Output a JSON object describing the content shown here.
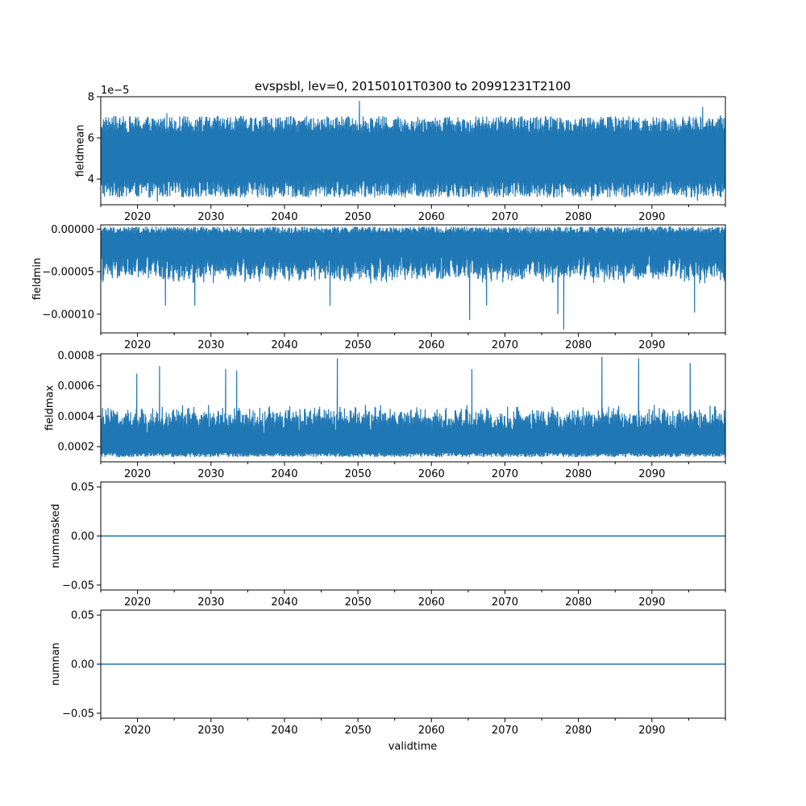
{
  "chart_data": {
    "type": "line",
    "title": "evspsbl, lev=0, 20150101T0300 to 20991231T2100",
    "xlabel": "validtime",
    "xlim": [
      2015.0,
      2100.0
    ],
    "x_ticks": [
      2020,
      2030,
      2040,
      2050,
      2060,
      2070,
      2080,
      2090
    ],
    "x_tick_labels": [
      "2020",
      "2030",
      "2040",
      "2050",
      "2060",
      "2070",
      "2080",
      "2090"
    ],
    "x_minor_ticks": [
      2015,
      2025,
      2035,
      2045,
      2055,
      2065,
      2075,
      2085,
      2095,
      2100
    ],
    "line_color": "#1f77b4",
    "grid": false,
    "legend": "none",
    "panels": [
      {
        "ylabel": "fieldmean",
        "offset_label": "1e−5",
        "ylim": [
          2.75,
          8.0
        ],
        "y_ticks": [
          4,
          6,
          8
        ],
        "y_tick_labels": [
          "4",
          "6",
          "8"
        ],
        "series_summary": {
          "mean": 5.0,
          "typical_low": 3.5,
          "typical_high": 6.5,
          "min": 2.9,
          "max": 7.8
        },
        "spikes": [
          {
            "x": 2022.7,
            "y": 2.9
          },
          {
            "x": 2024.0,
            "y": 7.2
          },
          {
            "x": 2050.2,
            "y": 7.8
          },
          {
            "x": 2081.8,
            "y": 2.95
          },
          {
            "x": 2096.2,
            "y": 2.95
          },
          {
            "x": 2096.9,
            "y": 7.5
          },
          {
            "x": 2099.3,
            "y": 7.1
          }
        ]
      },
      {
        "ylabel": "fieldmin",
        "ylim": [
          -0.000122,
          5e-06
        ],
        "y_ticks": [
          0.0,
          -5e-05,
          -0.0001
        ],
        "y_tick_labels": [
          "0.00000",
          "−0.00005",
          "−0.00010"
        ],
        "series_summary": {
          "upper_envelope": -5e-06,
          "typical_low": -5e-05,
          "min": -0.000118
        },
        "spikes": [
          {
            "x": 2023.8,
            "y": -9e-05
          },
          {
            "x": 2027.8,
            "y": -9e-05
          },
          {
            "x": 2046.2,
            "y": -9e-05
          },
          {
            "x": 2065.2,
            "y": -0.000107
          },
          {
            "x": 2067.5,
            "y": -9e-05
          },
          {
            "x": 2077.2,
            "y": -0.0001
          },
          {
            "x": 2078.0,
            "y": -0.000118
          },
          {
            "x": 2095.8,
            "y": -9.8e-05
          }
        ]
      },
      {
        "ylabel": "fieldmax",
        "ylim": [
          0.0001,
          0.00081
        ],
        "y_ticks": [
          0.0002,
          0.0004,
          0.0006,
          0.0008
        ],
        "y_tick_labels": [
          "0.0002",
          "0.0004",
          "0.0006",
          "0.0008"
        ],
        "series_summary": {
          "lower_envelope": 0.00014,
          "typical_high": 0.00038,
          "max": 0.00079
        },
        "spikes": [
          {
            "x": 2019.9,
            "y": 0.00068
          },
          {
            "x": 2023.0,
            "y": 0.00073
          },
          {
            "x": 2032.0,
            "y": 0.00071
          },
          {
            "x": 2033.5,
            "y": 0.0007
          },
          {
            "x": 2047.2,
            "y": 0.00078
          },
          {
            "x": 2065.5,
            "y": 0.00071
          },
          {
            "x": 2083.2,
            "y": 0.00079
          },
          {
            "x": 2088.2,
            "y": 0.00078
          },
          {
            "x": 2095.2,
            "y": 0.00075
          }
        ]
      },
      {
        "ylabel": "nummasked",
        "ylim": [
          -0.055,
          0.055
        ],
        "y_ticks": [
          0.05,
          0.0,
          -0.05
        ],
        "y_tick_labels": [
          "0.05",
          "0.00",
          "−0.05"
        ],
        "constant_value": 0.0
      },
      {
        "ylabel": "numnan",
        "ylim": [
          -0.055,
          0.055
        ],
        "y_ticks": [
          0.05,
          0.0,
          -0.05
        ],
        "y_tick_labels": [
          "0.05",
          "0.00",
          "−0.05"
        ],
        "constant_value": 0.0
      }
    ]
  }
}
